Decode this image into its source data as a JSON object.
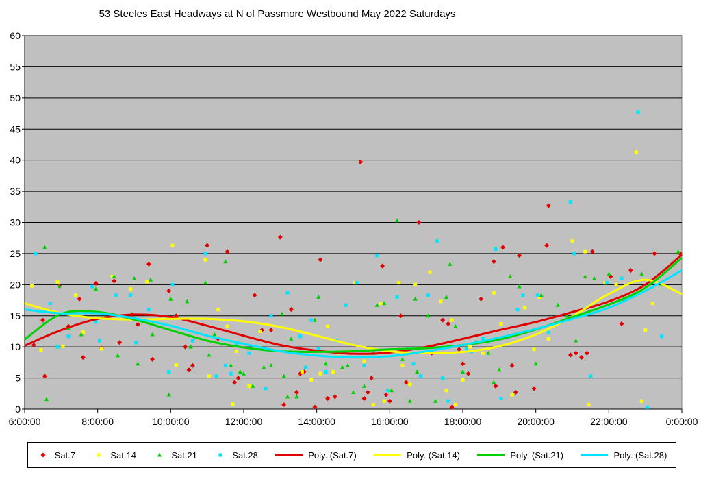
{
  "chart_data": {
    "type": "scatter",
    "title": "53 Steeles East Headways at N of Passmore Westbound May 2022  Saturdays",
    "xlabel": "",
    "ylabel": "",
    "xlim": [
      6,
      24
    ],
    "ylim": [
      0,
      60
    ],
    "x_ticks": [
      "6:00:00",
      "8:00:00",
      "10:00:00",
      "12:00:00",
      "14:00:00",
      "16:00:00",
      "18:00:00",
      "20:00:00",
      "22:00:00",
      "0:00:00"
    ],
    "x_tick_values": [
      6,
      8,
      10,
      12,
      14,
      16,
      18,
      20,
      22,
      24
    ],
    "y_ticks": [
      0,
      5,
      10,
      15,
      20,
      25,
      30,
      35,
      40,
      45,
      50,
      55,
      60
    ],
    "grid": "horizontal",
    "legend": "bottom",
    "series": [
      {
        "name": "Sat.7",
        "color": "#e00000",
        "marker": "diamond",
        "x": [
          6.25,
          6.5,
          6.55,
          6.95,
          7.2,
          7.5,
          7.6,
          7.95,
          8.1,
          8.45,
          8.6,
          8.95,
          9.1,
          9.4,
          9.5,
          9.95,
          10.15,
          10.4,
          10.5,
          10.6,
          11.0,
          11.3,
          11.55,
          11.75,
          11.85,
          12.3,
          12.5,
          12.75,
          13.0,
          13.1,
          13.3,
          13.45,
          13.55,
          13.65,
          13.95,
          14.1,
          14.3,
          14.5,
          15.2,
          15.3,
          15.4,
          15.5,
          15.8,
          15.9,
          16.0,
          16.3,
          16.45,
          16.8,
          17.15,
          17.45,
          17.6,
          17.7,
          17.9,
          18.0,
          18.15,
          18.5,
          18.85,
          18.9,
          19.1,
          19.35,
          19.45,
          19.55,
          19.95,
          20.3,
          20.35,
          20.95,
          21.1,
          21.25,
          21.4,
          21.55,
          22.05,
          22.35,
          22.6,
          23.25,
          23.95
        ],
        "y": [
          10.3,
          14.3,
          5.3,
          19.8,
          13.3,
          17.7,
          8.3,
          20.2,
          9.8,
          20.6,
          10.7,
          15.2,
          13.6,
          23.3,
          8.0,
          19.0,
          15.0,
          10.0,
          6.3,
          7.0,
          26.3,
          11.3,
          25.3,
          4.3,
          5.0,
          18.3,
          12.7,
          12.7,
          27.6,
          0.7,
          16.0,
          2.7,
          5.7,
          6.0,
          0.3,
          24.0,
          1.7,
          2.0,
          39.7,
          1.7,
          2.7,
          5.0,
          23.0,
          2.3,
          1.3,
          15.0,
          4.3,
          30.0,
          9.0,
          14.3,
          13.7,
          0.3,
          9.6,
          7.3,
          5.7,
          17.7,
          23.7,
          3.7,
          26.0,
          7.0,
          2.7,
          24.7,
          3.3,
          26.3,
          32.7,
          8.7,
          9.0,
          8.3,
          9.0,
          25.3,
          21.3,
          13.7,
          22.3,
          25.0,
          25.0
        ]
      },
      {
        "name": "Sat.14",
        "color": "#ffff00",
        "marker": "square",
        "x": [
          6.2,
          6.45,
          6.9,
          7.05,
          7.4,
          7.6,
          8.1,
          8.4,
          8.9,
          9.35,
          10.05,
          10.15,
          10.95,
          11.05,
          11.3,
          11.55,
          11.7,
          11.8,
          12.15,
          12.45,
          13.6,
          13.85,
          14.1,
          14.3,
          14.45,
          14.6,
          15.05,
          15.3,
          15.55,
          15.75,
          15.85,
          16.0,
          16.25,
          16.35,
          16.55,
          16.7,
          17.1,
          17.4,
          17.55,
          17.7,
          17.8,
          18.0,
          18.2,
          18.55,
          18.85,
          19.05,
          19.35,
          19.7,
          19.95,
          20.1,
          20.35,
          21.0,
          21.35,
          21.45,
          21.9,
          22.2,
          22.75,
          22.9,
          23.0,
          23.2
        ],
        "y": [
          19.8,
          9.5,
          20.4,
          10.1,
          18.3,
          12.4,
          9.7,
          21.3,
          19.3,
          20.5,
          26.3,
          7.1,
          24.0,
          5.3,
          16.0,
          13.3,
          0.8,
          9.3,
          3.7,
          12.5,
          6.0,
          4.7,
          5.7,
          13.3,
          6.0,
          9.0,
          20.3,
          7.7,
          0.7,
          17.0,
          1.3,
          3.0,
          20.3,
          7.0,
          4.0,
          20.0,
          22.0,
          17.3,
          3.0,
          14.3,
          0.7,
          4.7,
          10.0,
          9.0,
          18.7,
          13.7,
          2.3,
          16.3,
          9.6,
          18.0,
          11.3,
          27.0,
          25.3,
          0.7,
          20.3,
          20.0,
          41.3,
          1.3,
          12.7,
          17.0
        ]
      },
      {
        "name": "Sat.21",
        "color": "#00d000",
        "marker": "triangle",
        "x": [
          6.55,
          6.6,
          6.95,
          7.2,
          7.55,
          7.95,
          8.45,
          8.55,
          9.0,
          9.1,
          9.45,
          9.5,
          9.95,
          10.0,
          10.45,
          10.55,
          10.95,
          11.05,
          11.2,
          11.5,
          11.65,
          11.9,
          12.0,
          12.25,
          12.55,
          12.75,
          13.05,
          13.1,
          13.2,
          13.3,
          13.45,
          13.7,
          13.95,
          14.05,
          14.25,
          14.7,
          14.85,
          15.0,
          15.3,
          15.55,
          15.65,
          15.85,
          16.05,
          16.2,
          16.35,
          16.55,
          16.7,
          16.75,
          17.05,
          17.25,
          17.55,
          17.65,
          17.8,
          18.0,
          18.35,
          18.7,
          18.85,
          19.0,
          19.3,
          19.55,
          20.0,
          20.15,
          20.6,
          20.85,
          21.1,
          21.35,
          21.6,
          22.0,
          22.4,
          22.9,
          23.45,
          23.9
        ],
        "y": [
          26.0,
          1.6,
          19.8,
          13.0,
          12.0,
          19.3,
          21.3,
          8.6,
          21.0,
          7.3,
          20.8,
          12.0,
          2.3,
          17.7,
          17.3,
          10.0,
          20.3,
          8.7,
          12.0,
          23.7,
          7.0,
          6.0,
          5.7,
          3.7,
          6.7,
          7.0,
          15.3,
          5.3,
          2.0,
          11.3,
          2.0,
          6.7,
          14.3,
          18.0,
          7.3,
          6.7,
          7.0,
          2.7,
          3.7,
          9.0,
          16.7,
          17.0,
          3.0,
          30.3,
          8.0,
          1.3,
          17.7,
          6.0,
          15.0,
          1.3,
          18.0,
          23.3,
          13.3,
          6.0,
          10.7,
          9.0,
          4.3,
          6.3,
          21.3,
          19.7,
          7.3,
          18.3,
          16.7,
          15.0,
          11.0,
          21.3,
          21.0,
          21.7,
          17.7,
          21.7,
          20.0,
          25.3
        ]
      },
      {
        "name": "Sat.28",
        "color": "#00e5ff",
        "marker": "square",
        "x": [
          6.3,
          6.7,
          6.9,
          7.2,
          7.85,
          7.95,
          8.05,
          8.5,
          8.9,
          9.05,
          9.4,
          9.95,
          10.05,
          10.6,
          10.95,
          11.25,
          11.5,
          11.65,
          11.8,
          12.15,
          12.6,
          12.75,
          13.2,
          13.55,
          13.7,
          13.85,
          14.05,
          14.25,
          14.55,
          14.8,
          15.1,
          15.3,
          15.65,
          15.95,
          16.2,
          16.5,
          16.65,
          16.85,
          17.05,
          17.3,
          17.45,
          17.6,
          18.1,
          18.25,
          18.55,
          18.9,
          19.05,
          19.5,
          19.65,
          20.05,
          20.35,
          20.95,
          21.05,
          21.5,
          21.95,
          22.35,
          22.8,
          23.05,
          23.45
        ],
        "y": [
          25.0,
          17.0,
          10.0,
          11.7,
          19.7,
          14.0,
          11.0,
          18.3,
          18.3,
          10.7,
          16.0,
          6.0,
          20.0,
          11.0,
          25.0,
          5.3,
          7.0,
          5.7,
          10.3,
          9.0,
          3.3,
          15.0,
          18.7,
          11.7,
          6.7,
          14.3,
          9.7,
          6.0,
          11.0,
          16.7,
          20.3,
          7.0,
          24.7,
          3.0,
          18.0,
          9.7,
          7.3,
          5.3,
          18.3,
          27.0,
          5.0,
          1.3,
          9.7,
          9.3,
          11.3,
          25.7,
          1.7,
          16.0,
          18.3,
          18.3,
          12.3,
          33.3,
          25.0,
          5.3,
          20.3,
          21.0,
          47.7,
          0.3,
          11.7
        ]
      }
    ],
    "trendlines": [
      {
        "name": "Poly. (Sat.7)",
        "color": "#e00000",
        "x": [
          6,
          7,
          8,
          9,
          10,
          11,
          12,
          13,
          14,
          15,
          16,
          17,
          18,
          19,
          20,
          21,
          22,
          23,
          24
        ],
        "y": [
          10.2,
          12.7,
          14.5,
          15.2,
          14.8,
          13.4,
          11.8,
          10.3,
          9.4,
          8.9,
          9.1,
          10.0,
          11.3,
          12.7,
          14.0,
          15.6,
          17.3,
          20.0,
          24.8
        ]
      },
      {
        "name": "Poly. (Sat.14)",
        "color": "#ffff00",
        "x": [
          6,
          7,
          8,
          9,
          10,
          11,
          12,
          13,
          14,
          15,
          16,
          17,
          18,
          19,
          20,
          21,
          22,
          23,
          24
        ],
        "y": [
          17.0,
          15.4,
          14.6,
          14.4,
          14.5,
          14.5,
          14.1,
          13.2,
          11.8,
          10.3,
          9.3,
          9.0,
          9.2,
          10.1,
          12.0,
          14.9,
          18.5,
          20.8,
          18.5
        ]
      },
      {
        "name": "Poly. (Sat.21)",
        "color": "#00d000",
        "x": [
          6,
          7,
          8,
          9,
          10,
          11,
          12,
          13,
          14,
          15,
          16,
          17,
          18,
          19,
          20,
          21,
          22,
          23,
          24
        ],
        "y": [
          11.2,
          15.3,
          15.6,
          14.4,
          12.7,
          11.0,
          9.9,
          9.3,
          9.2,
          9.3,
          9.6,
          9.8,
          10.3,
          11.2,
          12.8,
          14.8,
          16.8,
          19.5,
          24.3
        ]
      },
      {
        "name": "Poly. (Sat.28)",
        "color": "#00e5ff",
        "x": [
          6,
          7,
          8,
          9,
          10,
          11,
          12,
          13,
          14,
          15,
          16,
          17,
          18,
          19,
          20,
          21,
          22,
          23,
          24
        ],
        "y": [
          16.0,
          15.4,
          15.4,
          14.6,
          13.4,
          11.8,
          10.5,
          9.3,
          8.6,
          8.3,
          8.5,
          9.3,
          10.3,
          11.5,
          12.9,
          14.5,
          16.3,
          19.0,
          22.3
        ]
      }
    ]
  }
}
